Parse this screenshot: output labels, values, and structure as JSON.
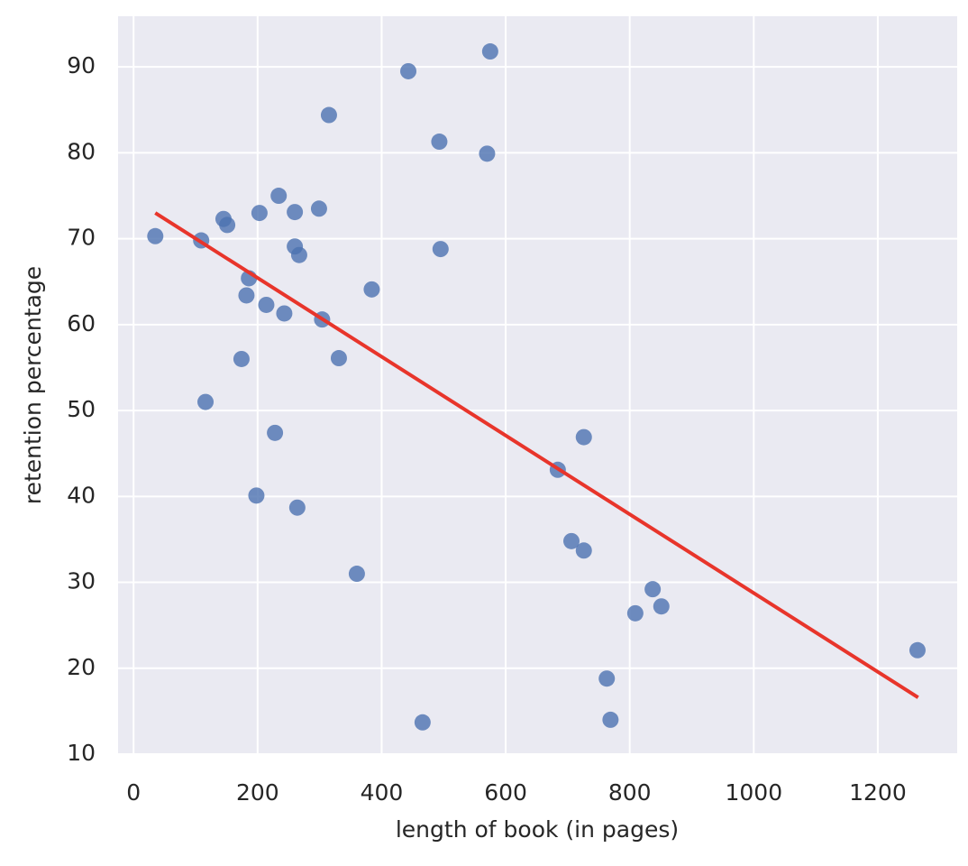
{
  "chart_data": {
    "type": "scatter",
    "x_label": "length of book (in pages)",
    "y_label": "retention percentage",
    "xlim": [
      -25,
      1328
    ],
    "ylim": [
      10,
      95.9
    ],
    "xticks": [
      0,
      200,
      400,
      600,
      800,
      1000,
      1200
    ],
    "yticks": [
      10,
      20,
      30,
      40,
      50,
      60,
      70,
      80,
      90
    ],
    "grid": true,
    "series": [
      {
        "color": "#4c72b0",
        "x": [
          35,
          109,
          116,
          145,
          151,
          174,
          182,
          186,
          198,
          203,
          214,
          228,
          234,
          243,
          260,
          260,
          264,
          267,
          299,
          304,
          315,
          331,
          360,
          384,
          443,
          466,
          493,
          495,
          570,
          575,
          684,
          706,
          726,
          726,
          763,
          769,
          809,
          837,
          851,
          1264
        ],
        "values": [
          70.3,
          69.8,
          51.0,
          72.3,
          71.6,
          56.0,
          63.4,
          65.4,
          40.1,
          73.0,
          62.3,
          47.4,
          75.0,
          61.3,
          73.1,
          69.1,
          38.7,
          68.1,
          73.5,
          60.6,
          84.4,
          56.1,
          31.0,
          64.1,
          89.5,
          13.7,
          81.3,
          68.8,
          79.9,
          91.8,
          43.1,
          34.8,
          46.9,
          33.7,
          18.8,
          14.0,
          26.4,
          29.2,
          27.2,
          22.1
        ]
      }
    ],
    "regression_line": {
      "color": "#e8352b",
      "x": [
        35,
        1265
      ],
      "values": [
        73.0,
        16.6
      ]
    }
  }
}
